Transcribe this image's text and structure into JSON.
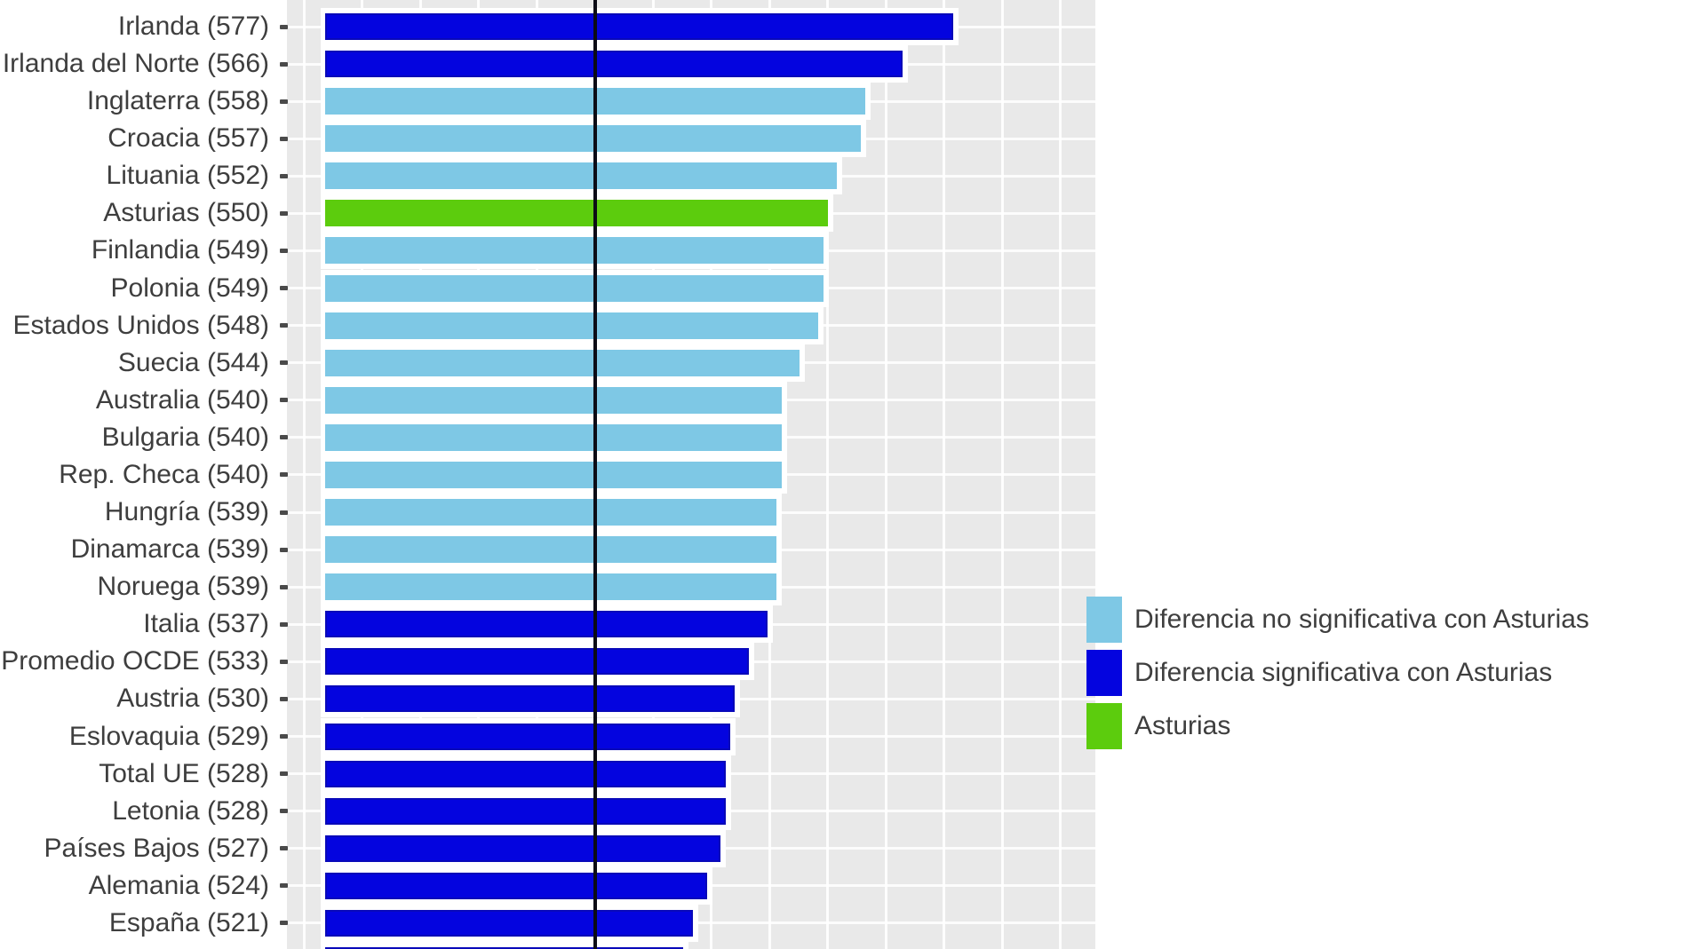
{
  "chart_data": {
    "type": "bar",
    "orientation": "horizontal",
    "title": "",
    "reference_line_value": 500,
    "axis": {
      "value_at_bar_base": 442,
      "panel_value_min": 434,
      "panel_value_max": 607,
      "gridline_start": 437.5,
      "gridline_step": 12.5,
      "grid": "on",
      "tick_labels_visible": false
    },
    "rows": [
      {
        "label": "Irlanda (577)",
        "value": 577,
        "group": "significant"
      },
      {
        "label": "Irlanda del Norte (566)",
        "value": 566,
        "group": "significant"
      },
      {
        "label": "Inglaterra (558)",
        "value": 558,
        "group": "not_significant"
      },
      {
        "label": "Croacia (557)",
        "value": 557,
        "group": "not_significant"
      },
      {
        "label": "Lituania (552)",
        "value": 552,
        "group": "not_significant"
      },
      {
        "label": "Asturias (550)",
        "value": 550,
        "group": "asturias"
      },
      {
        "label": "Finlandia (549)",
        "value": 549,
        "group": "not_significant"
      },
      {
        "label": "Polonia (549)",
        "value": 549,
        "group": "not_significant"
      },
      {
        "label": "Estados Unidos (548)",
        "value": 548,
        "group": "not_significant"
      },
      {
        "label": "Suecia (544)",
        "value": 544,
        "group": "not_significant"
      },
      {
        "label": "Australia (540)",
        "value": 540,
        "group": "not_significant"
      },
      {
        "label": "Bulgaria (540)",
        "value": 540,
        "group": "not_significant"
      },
      {
        "label": "Rep. Checa (540)",
        "value": 540,
        "group": "not_significant"
      },
      {
        "label": "Hungría (539)",
        "value": 539,
        "group": "not_significant"
      },
      {
        "label": "Dinamarca (539)",
        "value": 539,
        "group": "not_significant"
      },
      {
        "label": "Noruega (539)",
        "value": 539,
        "group": "not_significant"
      },
      {
        "label": "Italia (537)",
        "value": 537,
        "group": "significant"
      },
      {
        "label": "Promedio OCDE (533)",
        "value": 533,
        "group": "significant"
      },
      {
        "label": "Austria (530)",
        "value": 530,
        "group": "significant"
      },
      {
        "label": "Eslovaquia (529)",
        "value": 529,
        "group": "significant"
      },
      {
        "label": "Total UE (528)",
        "value": 528,
        "group": "significant"
      },
      {
        "label": "Letonia (528)",
        "value": 528,
        "group": "significant"
      },
      {
        "label": "Países Bajos (527)",
        "value": 527,
        "group": "significant"
      },
      {
        "label": "Alemania (524)",
        "value": 524,
        "group": "significant"
      },
      {
        "label": "España (521)",
        "value": 521,
        "group": "significant"
      }
    ],
    "clipped_bottom_bar": {
      "value": 519,
      "group": "significant"
    },
    "colors": {
      "not_significant": "#7EC8E5",
      "significant": "#0404DF",
      "asturias": "#5CCC0D",
      "panel_background": "#E9E9E9",
      "gridline": "#FFFFFF",
      "reference_line": "#0C0C16",
      "label_text": "#3E3E3E"
    },
    "legend": {
      "position": "right",
      "items": [
        {
          "label": "Diferencia no significativa con Asturias",
          "group": "not_significant"
        },
        {
          "label": "Diferencia significativa con Asturias",
          "group": "significant"
        },
        {
          "label": "Asturias",
          "group": "asturias"
        }
      ]
    }
  }
}
